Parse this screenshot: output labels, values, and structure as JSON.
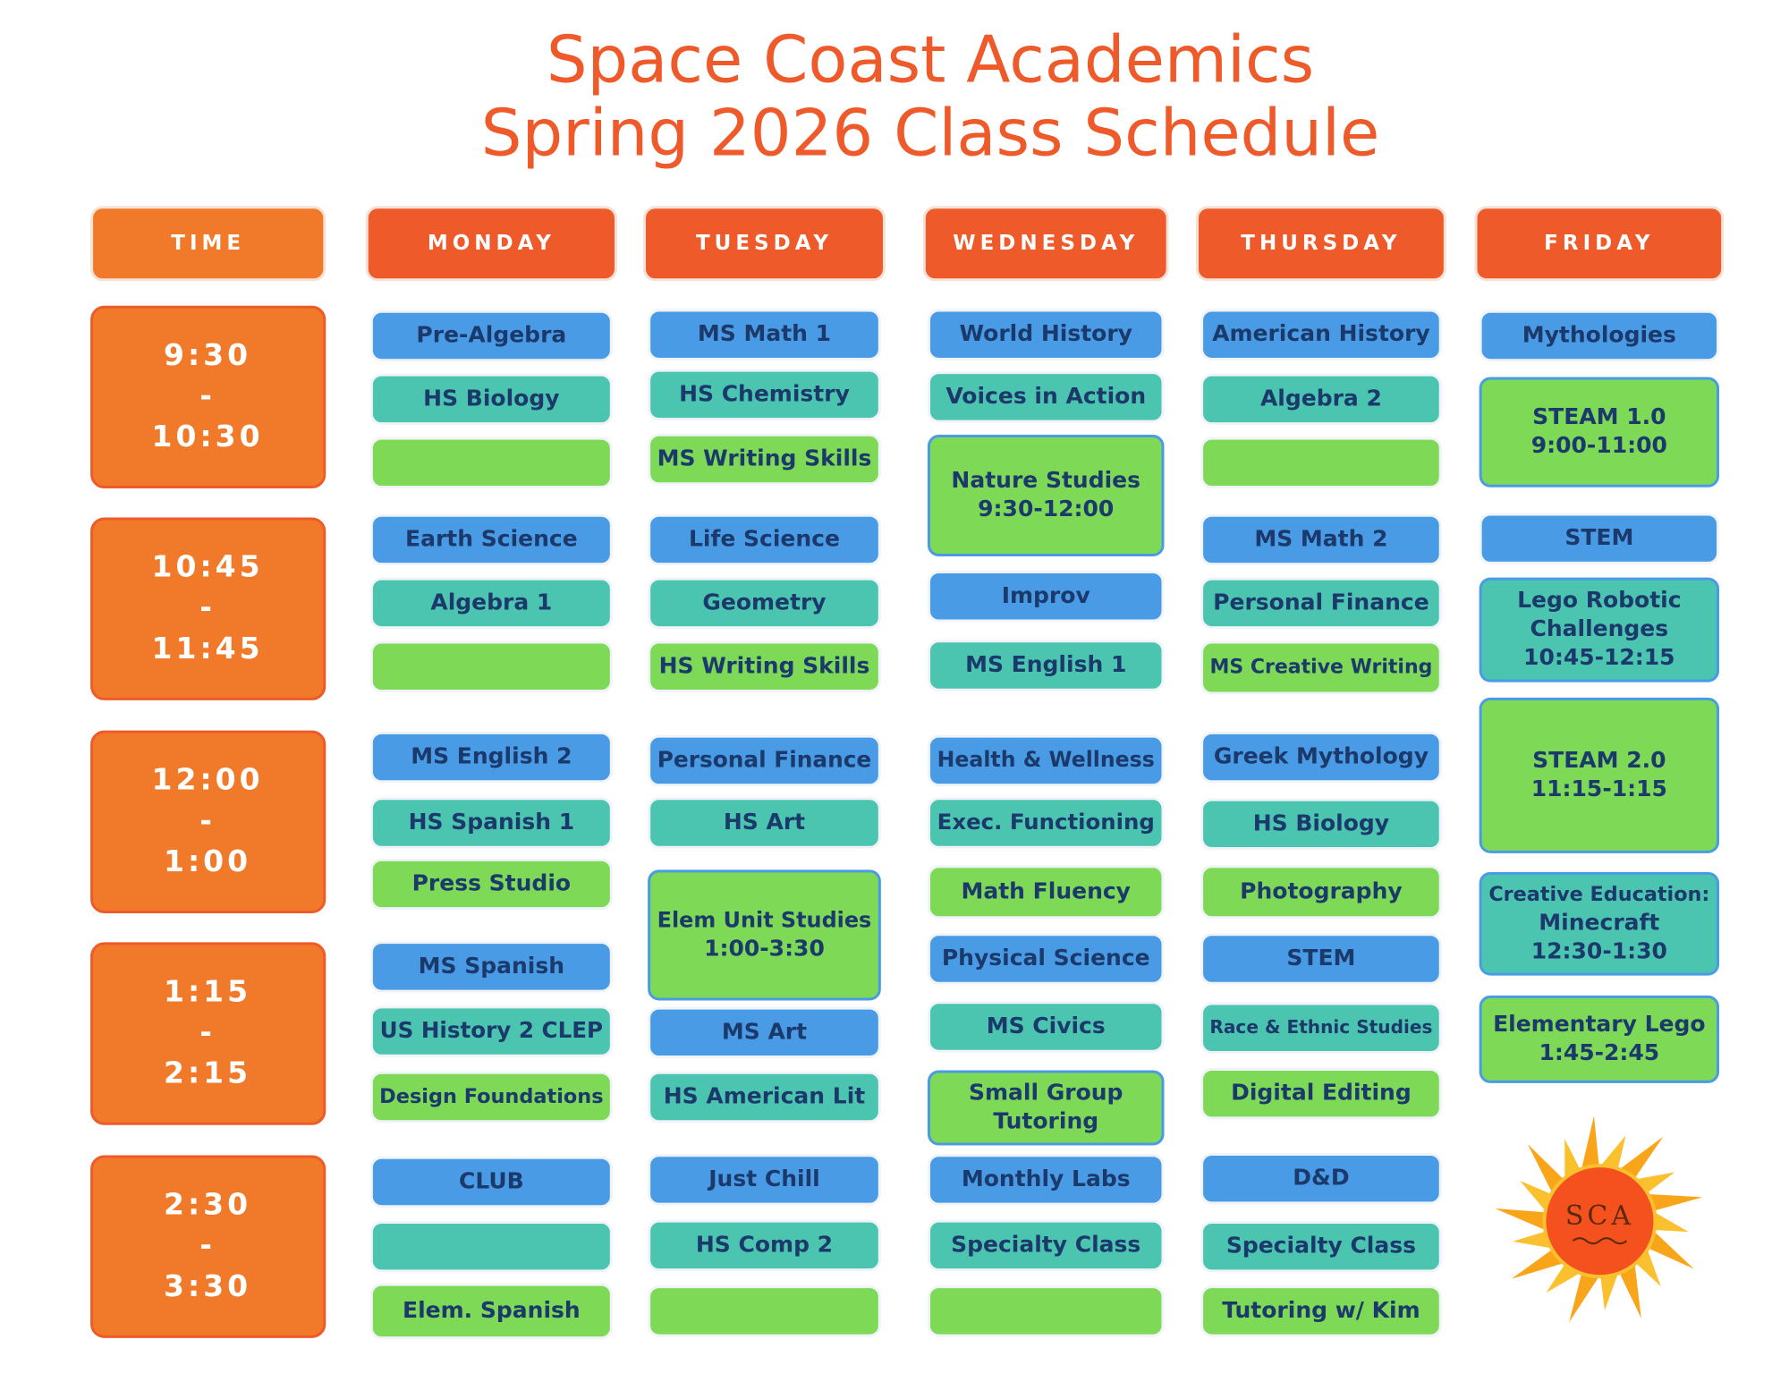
{
  "header": {
    "title": "Space Coast Academics",
    "subtitle": "Spring 2026 Class Schedule"
  },
  "columns": [
    "TIME",
    "MONDAY",
    "TUESDAY",
    "WEDNESDAY",
    "THURSDAY",
    "FRIDAY"
  ],
  "times": [
    [
      "9:30",
      "-",
      "10:30"
    ],
    [
      "10:45",
      "-",
      "11:45"
    ],
    [
      "12:00",
      "-",
      "1:00"
    ],
    [
      "1:15",
      "-",
      "2:15"
    ],
    [
      "2:30",
      "-",
      "3:30"
    ]
  ],
  "days": [
    [
      [
        "Pre-Algebra"
      ],
      [
        "HS Biology"
      ],
      [
        "Earth Science"
      ],
      [
        "Algebra 1"
      ],
      [
        "MS English 2"
      ],
      [
        "HS Spanish 1"
      ],
      [
        "Press Studio"
      ],
      [
        "MS Spanish"
      ],
      [
        "US History 2 CLEP"
      ],
      [
        "Design Foundations"
      ],
      [
        "CLUB"
      ],
      [
        "Elem. Spanish"
      ]
    ],
    [
      [
        "MS Math 1"
      ],
      [
        "HS Chemistry"
      ],
      [
        "MS Writing Skills"
      ],
      [
        "Life Science"
      ],
      [
        "Geometry"
      ],
      [
        "HS Writing Skills"
      ],
      [
        "Personal Finance"
      ],
      [
        "HS Art"
      ],
      [
        "Elem Unit Studies",
        "1:00-3:30"
      ],
      [
        "MS Art"
      ],
      [
        "HS American Lit"
      ],
      [
        "Just Chill"
      ],
      [
        "HS Comp 2"
      ]
    ],
    [
      [
        "World History"
      ],
      [
        "Voices in Action"
      ],
      [
        "Nature Studies",
        "9:30-12:00"
      ],
      [
        "Improv"
      ],
      [
        "MS English 1"
      ],
      [
        "Health & Wellness"
      ],
      [
        "Exec. Functioning"
      ],
      [
        "Math Fluency"
      ],
      [
        "Physical Science"
      ],
      [
        "MS Civics"
      ],
      [
        "Small Group",
        "Tutoring"
      ],
      [
        "Monthly Labs"
      ],
      [
        "Specialty Class"
      ]
    ],
    [
      [
        "American History"
      ],
      [
        "Algebra 2"
      ],
      [
        "MS Math 2"
      ],
      [
        "Personal Finance"
      ],
      [
        "MS Creative Writing"
      ],
      [
        "Greek Mythology"
      ],
      [
        "HS Biology"
      ],
      [
        "Photography"
      ],
      [
        "STEM"
      ],
      [
        "Race & Ethnic Studies"
      ],
      [
        "Digital Editing"
      ],
      [
        "D&D"
      ],
      [
        "Specialty Class"
      ],
      [
        "Tutoring w/ Kim"
      ]
    ],
    [
      [
        "Mythologies"
      ],
      [
        "STEAM 1.0",
        "9:00-11:00"
      ],
      [
        "STEM"
      ],
      [
        "Lego Robotic",
        "Challenges",
        "10:45-12:15"
      ],
      [
        "STEAM 2.0",
        "11:15-1:15"
      ],
      [
        "Creative Education:",
        "Minecraft",
        "12:30-1:30"
      ],
      [
        "Elementary Lego",
        "1:45-2:45"
      ]
    ]
  ],
  "logo": "SCA"
}
